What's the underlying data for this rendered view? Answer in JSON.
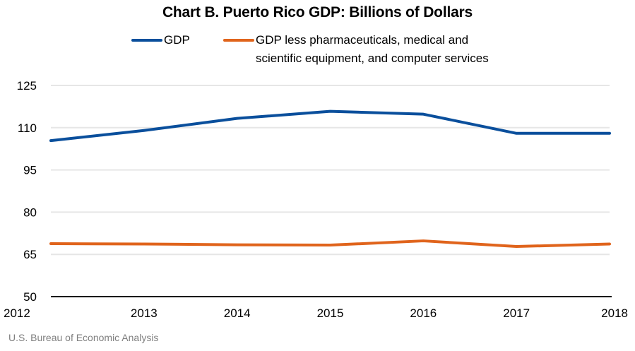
{
  "chart_data": {
    "type": "line",
    "title": "Chart B. Puerto Rico GDP: Billions of Dollars",
    "xlabel": "",
    "ylabel": "",
    "x": [
      "2012",
      "2013",
      "2014",
      "2015",
      "2016",
      "2017",
      "2018"
    ],
    "ylim": [
      50,
      125
    ],
    "yticks": [
      50,
      65,
      80,
      95,
      110,
      125
    ],
    "grid": true,
    "legend_position": "top",
    "series": [
      {
        "name": "GDP",
        "color": "#0a4f9c",
        "values": [
          105.4,
          109.0,
          113.3,
          115.8,
          114.8,
          108.0,
          108.0
        ]
      },
      {
        "name": "GDP less pharmaceuticals, medical and scientific equipment, and computer services",
        "legend_lines": [
          "GDP less pharmaceuticals, medical and",
          "scientific equipment, and computer services"
        ],
        "color": "#e0641c",
        "values": [
          68.8,
          68.7,
          68.4,
          68.3,
          69.8,
          67.8,
          68.7
        ]
      }
    ]
  },
  "source": "U.S. Bureau of Economic Analysis"
}
